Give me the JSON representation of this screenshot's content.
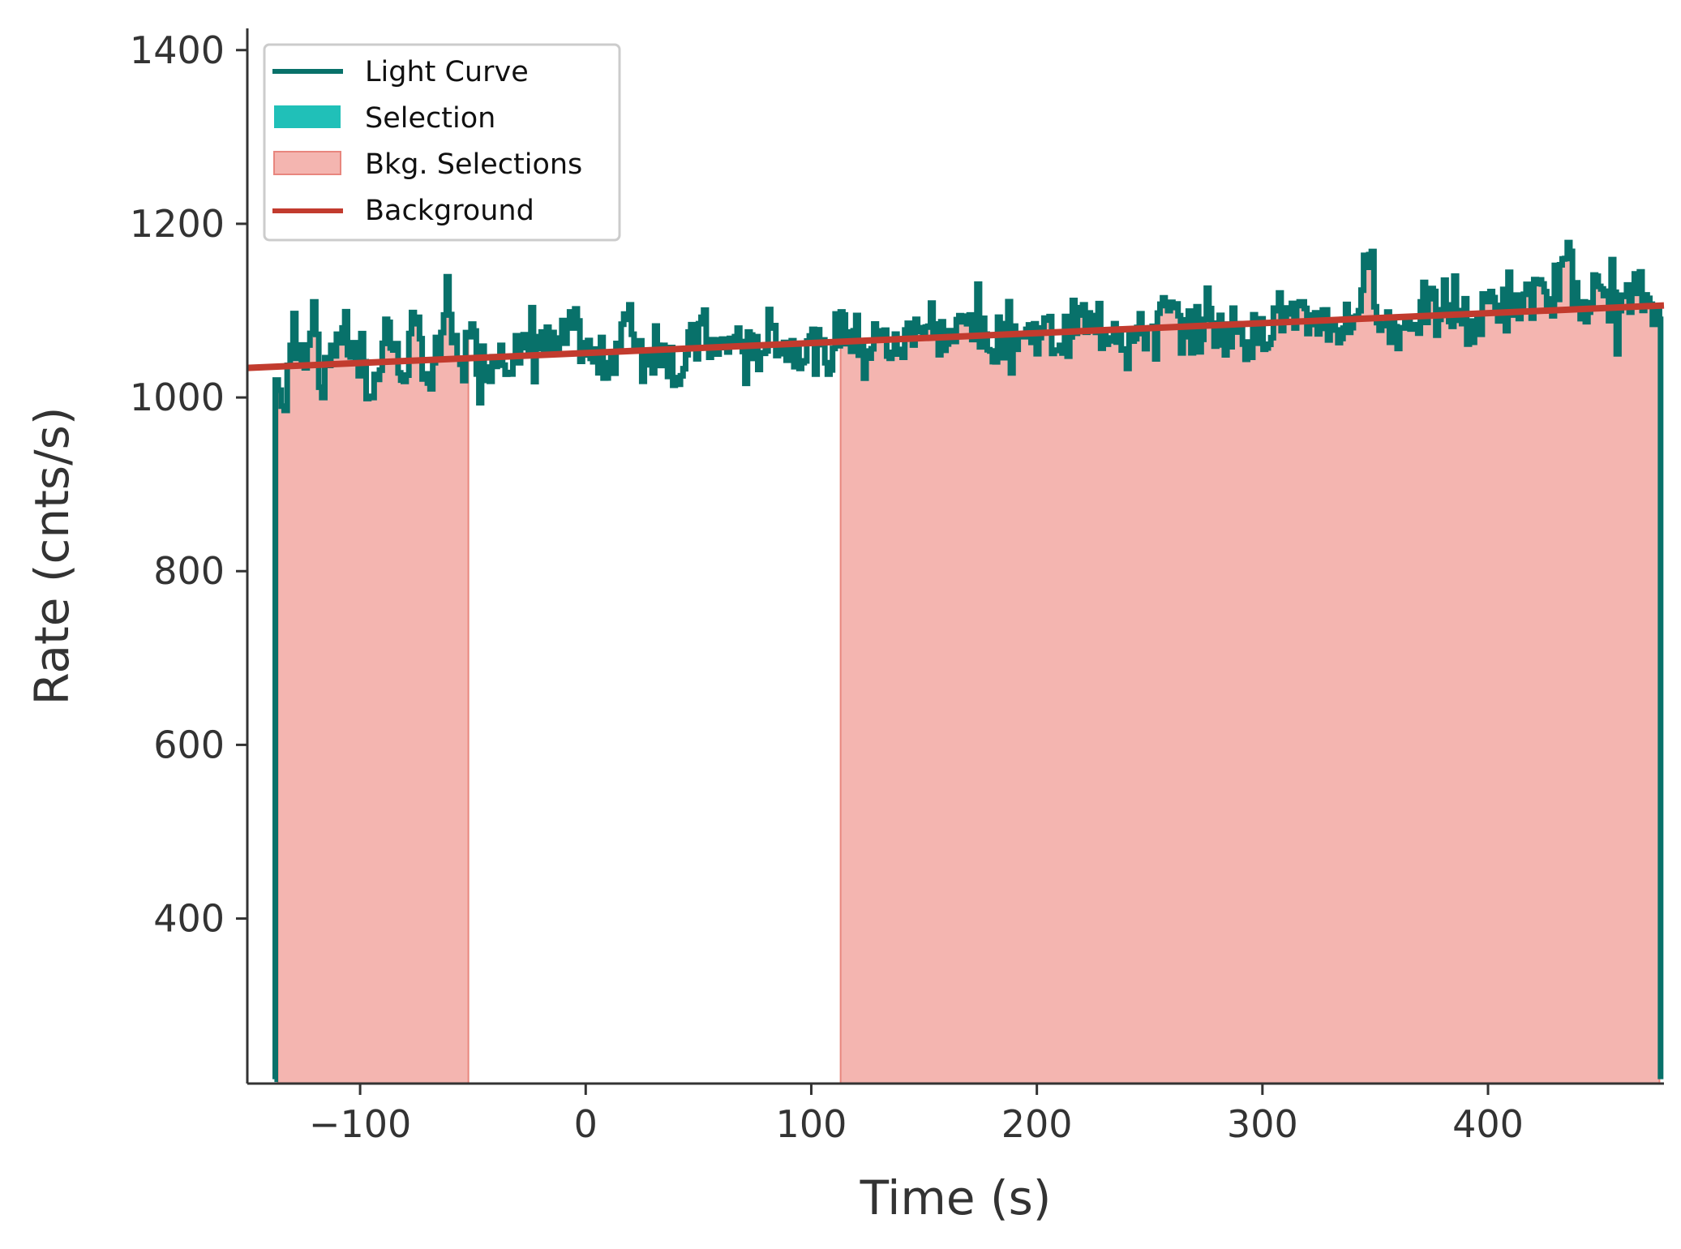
{
  "chart_data": {
    "type": "line",
    "title": "",
    "xlabel": "Time (s)",
    "ylabel": "Rate (cnts/s)",
    "xlim": [
      -150,
      478
    ],
    "ylim": [
      210,
      1425
    ],
    "xticks": [
      -100,
      0,
      100,
      200,
      300,
      400
    ],
    "xtick_labels": [
      "−100",
      "0",
      "100",
      "200",
      "300",
      "400"
    ],
    "yticks": [
      400,
      600,
      800,
      1000,
      1200,
      1400
    ],
    "ytick_labels": [
      "400",
      "600",
      "800",
      "1000",
      "1200",
      "1400"
    ],
    "grid": false,
    "legend_position": "top-left",
    "legend": [
      {
        "label": "Light Curve",
        "kind": "line"
      },
      {
        "label": "Selection",
        "kind": "patch"
      },
      {
        "label": "Bkg. Selections",
        "kind": "patch"
      },
      {
        "label": "Background",
        "kind": "line"
      }
    ],
    "colors": {
      "light_curve": "#08716a",
      "selection": "#20c0b8",
      "bkg_fill": "#f4b5b0",
      "bkg_edge": "#e8867e",
      "background": "#c23b2e",
      "axis": "#333333"
    },
    "background_fit": {
      "x": [
        -150,
        478
      ],
      "y": [
        1034,
        1106
      ]
    },
    "bkg_selections": [
      [
        -136.5,
        -52
      ],
      [
        113,
        476
      ]
    ],
    "light_curve": {
      "x": [
        -138,
        -137.6,
        -135,
        -131,
        -126,
        -121,
        -117,
        -113,
        -108,
        -102,
        -95,
        -89,
        -82,
        -76,
        -69,
        -63,
        -57,
        -52,
        -45,
        -38,
        -30,
        -22,
        -14,
        -6,
        2,
        10,
        18,
        26,
        34,
        42,
        50,
        58,
        66,
        74,
        82,
        90,
        98,
        106,
        114,
        122,
        130,
        138,
        146,
        154,
        162,
        170,
        178,
        186,
        194,
        202,
        210,
        218,
        226,
        234,
        242,
        250,
        258,
        266,
        274,
        282,
        290,
        298,
        306,
        314,
        322,
        330,
        338,
        346,
        354,
        362,
        370,
        378,
        386,
        394,
        402,
        410,
        418,
        426,
        434,
        442,
        450,
        458,
        466,
        474,
        476,
        476.5
      ],
      "y": [
        215,
        1020,
        990,
        1060,
        1040,
        1110,
        1000,
        1060,
        1080,
        1040,
        1000,
        1090,
        1020,
        1085,
        1010,
        1095,
        1045,
        1070,
        1035,
        1060,
        1040,
        1070,
        1050,
        1080,
        1045,
        1040,
        1090,
        1050,
        1060,
        1025,
        1085,
        1050,
        1070,
        1045,
        1080,
        1055,
        1065,
        1040,
        1095,
        1060,
        1070,
        1050,
        1090,
        1075,
        1065,
        1095,
        1055,
        1085,
        1070,
        1080,
        1060,
        1095,
        1075,
        1085,
        1065,
        1080,
        1100,
        1070,
        1090,
        1075,
        1085,
        1065,
        1100,
        1080,
        1095,
        1085,
        1075,
        1150,
        1085,
        1080,
        1110,
        1090,
        1100,
        1080,
        1115,
        1095,
        1120,
        1105,
        1160,
        1110,
        1125,
        1100,
        1120,
        1105,
        1090,
        215
      ]
    }
  }
}
